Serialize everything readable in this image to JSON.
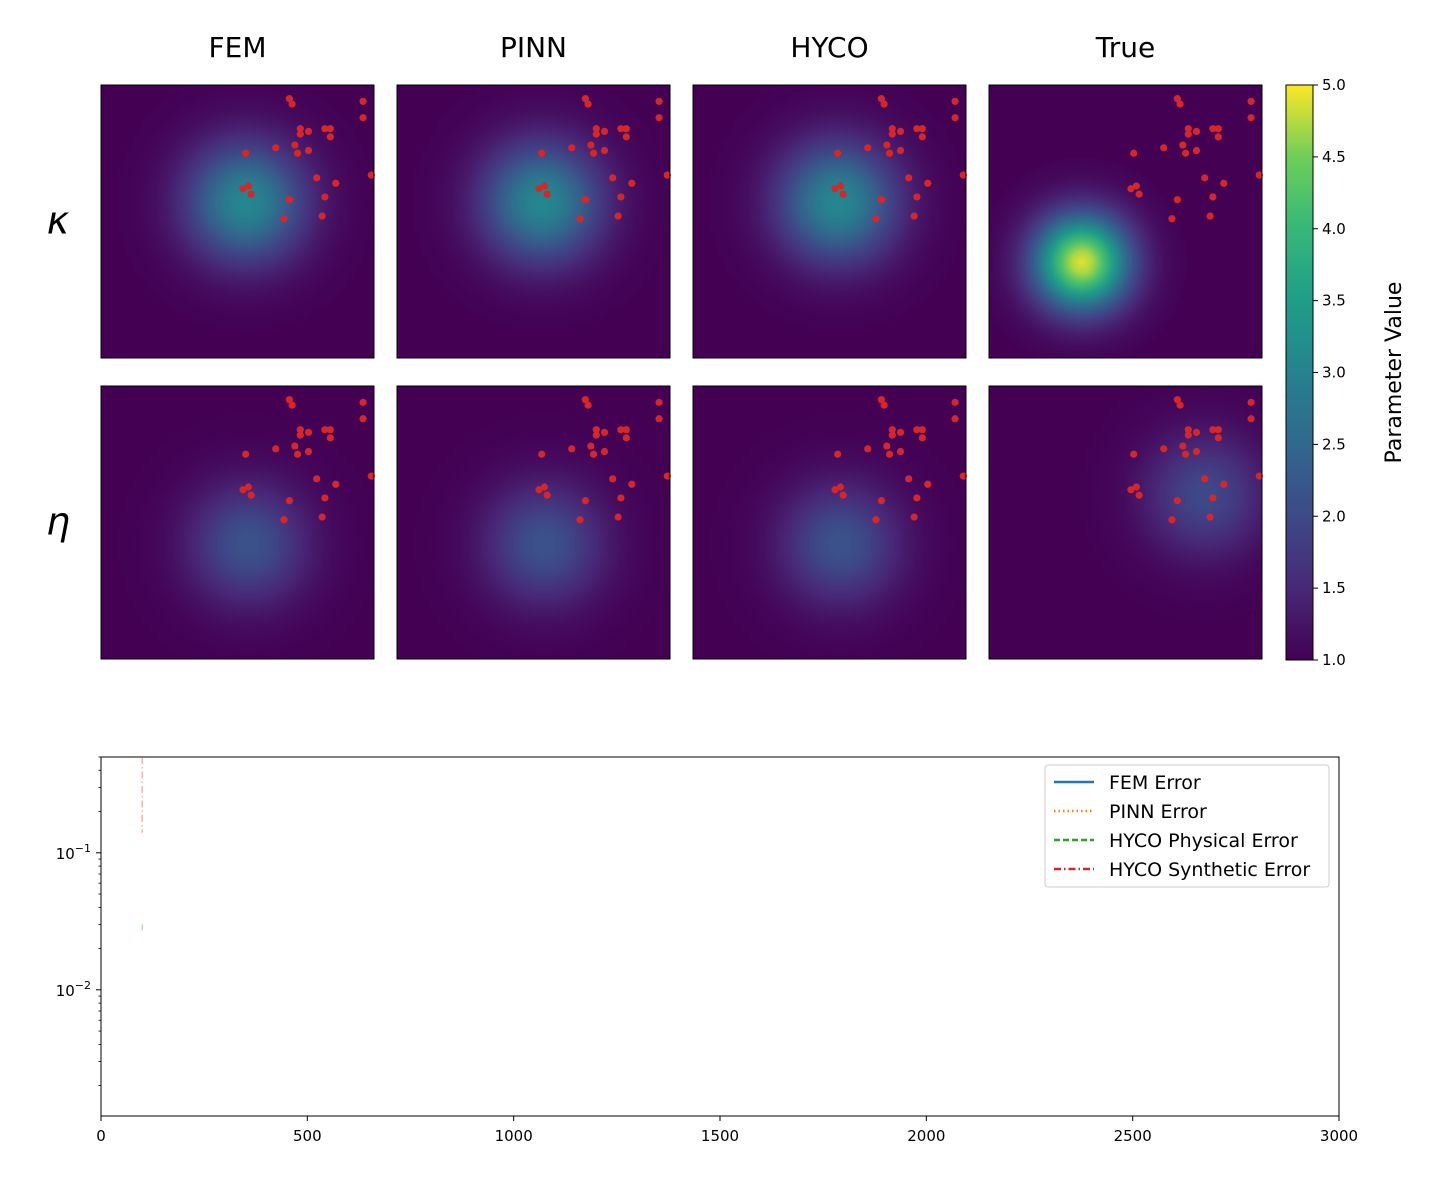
{
  "chart_data": [
    {
      "type": "heatmap",
      "columns": [
        "FEM",
        "PINN",
        "HYCO",
        "True"
      ],
      "rows": [
        "κ",
        "η"
      ],
      "colorbar": {
        "label": "Parameter Value",
        "range": [
          1.0,
          5.0
        ],
        "ticks": [
          "1.0",
          "1.5",
          "2.0",
          "2.5",
          "3.0",
          "3.5",
          "4.0",
          "4.5",
          "5.0"
        ],
        "colormap": "viridis"
      },
      "fields": [
        {
          "row": "κ",
          "column": "FEM",
          "center": [
            0.53,
            0.57
          ],
          "peak": 3.1,
          "width": 0.15
        },
        {
          "row": "κ",
          "column": "PINN",
          "center": [
            0.53,
            0.57
          ],
          "peak": 3.1,
          "width": 0.15
        },
        {
          "row": "κ",
          "column": "HYCO",
          "center": [
            0.53,
            0.57
          ],
          "peak": 3.1,
          "width": 0.15
        },
        {
          "row": "κ",
          "column": "True",
          "center": [
            0.34,
            0.35
          ],
          "peak": 4.9,
          "width": 0.12
        },
        {
          "row": "η",
          "column": "FEM",
          "center": [
            0.54,
            0.42
          ],
          "peak": 2.15,
          "width": 0.15
        },
        {
          "row": "η",
          "column": "PINN",
          "center": [
            0.54,
            0.42
          ],
          "peak": 2.15,
          "width": 0.15
        },
        {
          "row": "η",
          "column": "HYCO",
          "center": [
            0.54,
            0.42
          ],
          "peak": 2.15,
          "width": 0.15
        },
        {
          "row": "η",
          "column": "True",
          "center": [
            0.79,
            0.6
          ],
          "peak": 2.0,
          "width": 0.15
        }
      ],
      "observation_points": [
        [
          0.69,
          0.95
        ],
        [
          0.7,
          0.93
        ],
        [
          0.96,
          0.94
        ],
        [
          0.96,
          0.88
        ],
        [
          0.73,
          0.84
        ],
        [
          0.73,
          0.82
        ],
        [
          0.76,
          0.83
        ],
        [
          0.82,
          0.84
        ],
        [
          0.84,
          0.84
        ],
        [
          0.84,
          0.81
        ],
        [
          0.64,
          0.77
        ],
        [
          0.71,
          0.78
        ],
        [
          0.72,
          0.75
        ],
        [
          0.76,
          0.76
        ],
        [
          0.53,
          0.75
        ],
        [
          0.79,
          0.66
        ],
        [
          0.52,
          0.62
        ],
        [
          0.54,
          0.63
        ],
        [
          0.55,
          0.6
        ],
        [
          0.86,
          0.64
        ],
        [
          0.82,
          0.59
        ],
        [
          0.69,
          0.58
        ],
        [
          0.67,
          0.51
        ],
        [
          0.81,
          0.52
        ],
        [
          0.99,
          0.67
        ]
      ],
      "point_color": "#d62728"
    },
    {
      "type": "line",
      "x_ticks": [
        "0",
        "500",
        "1000",
        "1500",
        "2000",
        "2500",
        "3000"
      ],
      "xlim": [
        0,
        3000
      ],
      "y_scale": "log",
      "ylim": [
        0.0012,
        0.5
      ],
      "y_ticks": [
        {
          "value": 0.1,
          "base": "10",
          "exp": "−1"
        },
        {
          "value": 0.01,
          "base": "10",
          "exp": "−2"
        }
      ],
      "series": [
        {
          "name": "FEM Error",
          "color": "#1f77b4",
          "dash": "solid",
          "x": [],
          "y": []
        },
        {
          "name": "PINN Error",
          "color": "#ff7f0e",
          "dash": "dotted",
          "x": [],
          "y": []
        },
        {
          "name": "HYCO Physical Error",
          "color": "#2ca02c",
          "dash": "dashed",
          "x": [
            100,
            100
          ],
          "y": [
            0.03,
            0.026
          ]
        },
        {
          "name": "HYCO Synthetic Error",
          "color": "#d62728",
          "dash": "dashdot",
          "x": [
            100,
            100
          ],
          "y": [
            0.5,
            0.14
          ]
        }
      ],
      "legend_position": "top-right"
    }
  ]
}
